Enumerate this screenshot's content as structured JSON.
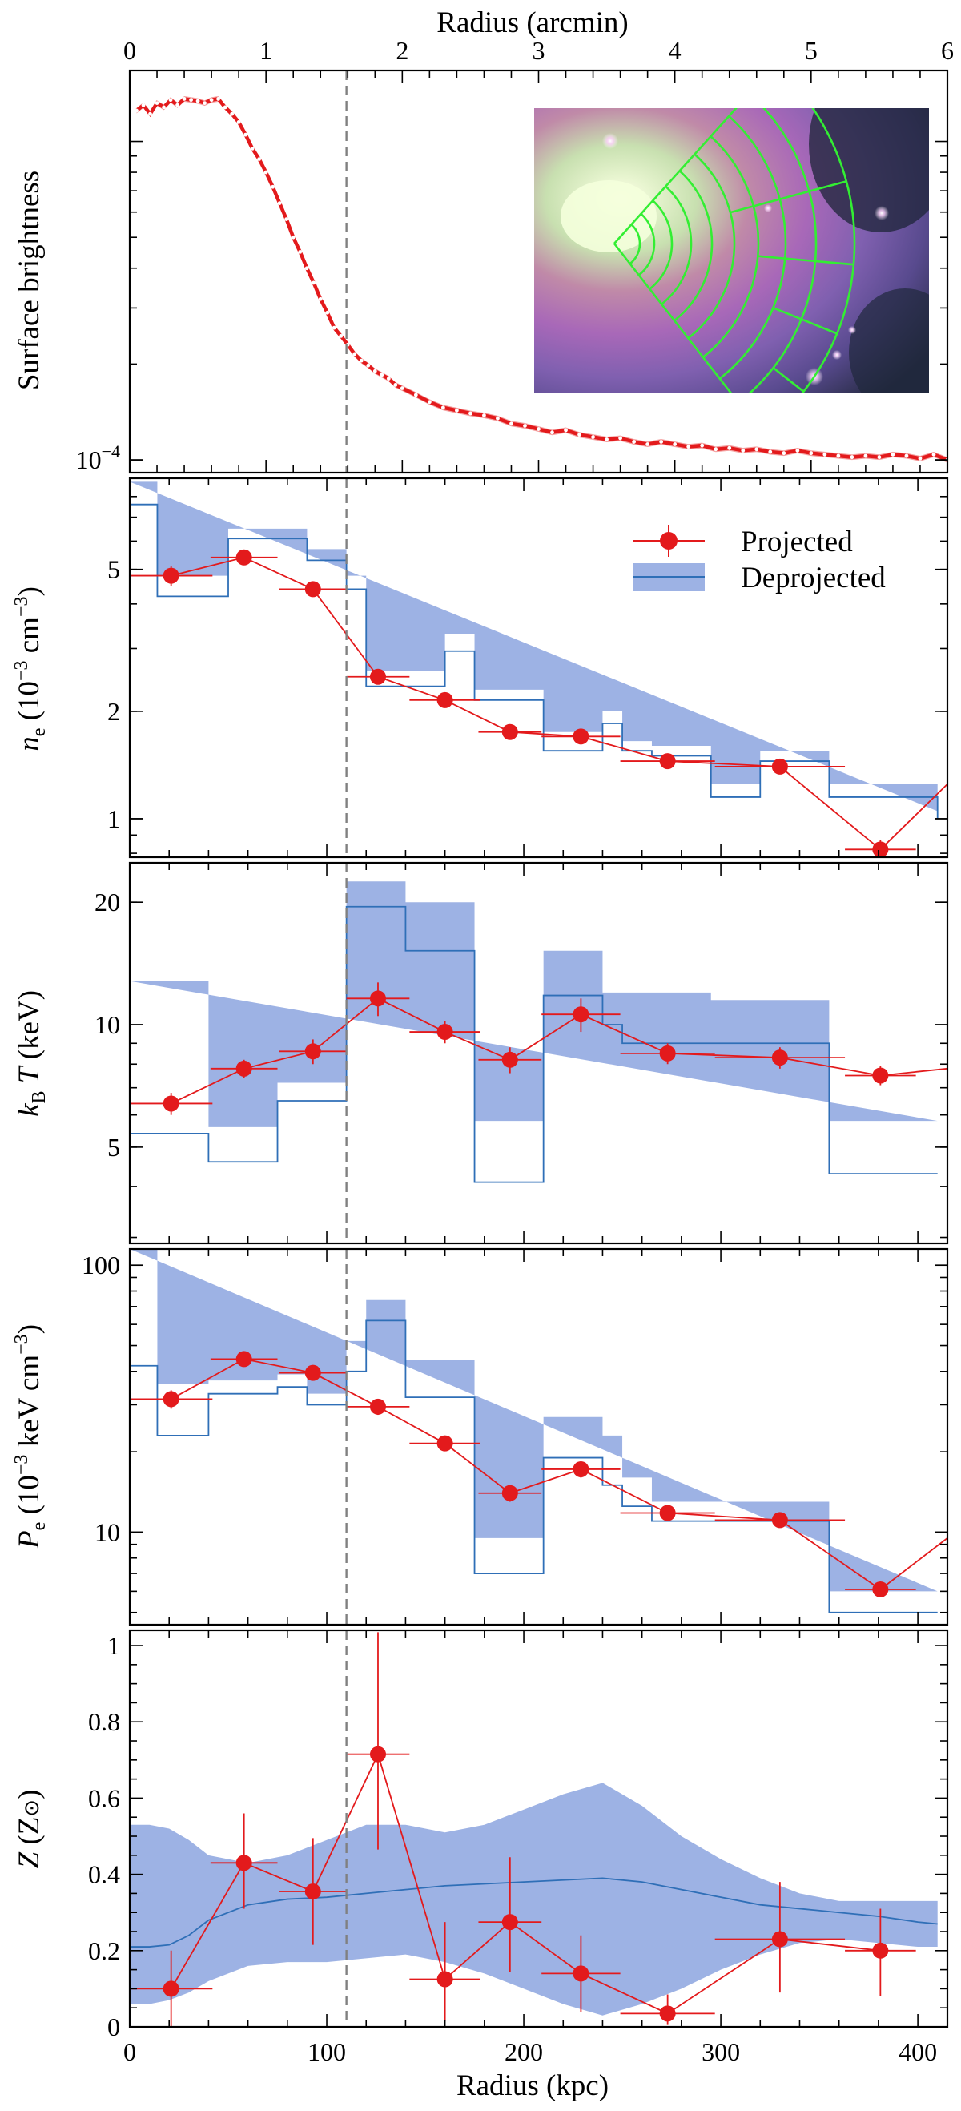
{
  "figure": {
    "top_axis_label": "Radius (arcmin)",
    "bottom_axis_label": "Radius (kpc)",
    "top_ticks": [
      "0",
      "1",
      "2",
      "3",
      "4",
      "5",
      "6"
    ],
    "bottom_ticks": [
      "0",
      "100",
      "200",
      "300",
      "400"
    ],
    "marker_line_kpc": 110
  },
  "colors": {
    "projected": "#e31a1c",
    "deproj_fill": "#9db2e4",
    "deproj_line": "#2f6fb7",
    "marker_line": "#808080"
  },
  "legend": {
    "projected": "Projected",
    "deprojected": "Deprojected"
  },
  "chart_data": [
    {
      "id": "sb",
      "type": "line",
      "ylabel": "Surface brightness",
      "yscale": "log",
      "ylim": [
        9.12e-05,
        0.00167
      ],
      "yticks": [
        {
          "value": 0.0001,
          "label": "10^-4"
        }
      ],
      "xlim": [
        0,
        6
      ],
      "x_unit": "arcmin",
      "inset_image": true,
      "series": [
        {
          "x": [
            0.05,
            0.1,
            0.15,
            0.2,
            0.25,
            0.3,
            0.35,
            0.4,
            0.45,
            0.5,
            0.55,
            0.6,
            0.65,
            0.7,
            0.75,
            0.8,
            0.85,
            0.9,
            0.95,
            1.0,
            1.05,
            1.1,
            1.15,
            1.2,
            1.25,
            1.3,
            1.35,
            1.4,
            1.45,
            1.5,
            1.55,
            1.6,
            1.65,
            1.7,
            1.75,
            1.8,
            1.85,
            1.9,
            1.95,
            2.0,
            2.1,
            2.2,
            2.3,
            2.4,
            2.5,
            2.6,
            2.7,
            2.8,
            2.9,
            3.0,
            3.1,
            3.2,
            3.3,
            3.4,
            3.5,
            3.6,
            3.7,
            3.8,
            3.9,
            4.0,
            4.1,
            4.2,
            4.3,
            4.4,
            4.5,
            4.6,
            4.7,
            4.8,
            4.9,
            5.0,
            5.1,
            5.2,
            5.3,
            5.4,
            5.5,
            5.6,
            5.7,
            5.8,
            5.9,
            6.0
          ],
          "y": [
            0.00125,
            0.0013,
            0.00122,
            0.00132,
            0.00128,
            0.00135,
            0.0013,
            0.00136,
            0.00135,
            0.00134,
            0.00132,
            0.00135,
            0.00136,
            0.00128,
            0.00122,
            0.00115,
            0.00105,
            0.00095,
            0.00088,
            0.0008,
            0.00072,
            0.00064,
            0.00057,
            0.0005,
            0.00045,
            0.0004,
            0.00036,
            0.00032,
            0.00029,
            0.00026,
            0.000245,
            0.00023,
            0.000215,
            0.000205,
            0.000198,
            0.00019,
            0.000185,
            0.00018,
            0.000172,
            0.000168,
            0.00016,
            0.000152,
            0.000146,
            0.000143,
            0.00014,
            0.000138,
            0.000135,
            0.00013,
            0.000128,
            0.000125,
            0.000122,
            0.000124,
            0.00012,
            0.000118,
            0.000116,
            0.000117,
            0.000114,
            0.000112,
            0.000114,
            0.000112,
            0.00011,
            0.000111,
            0.000108,
            0.000109,
            0.000107,
            0.000108,
            0.000106,
            0.000105,
            0.000107,
            0.000105,
            0.000104,
            0.000103,
            0.000102,
            0.000103,
            0.000102,
            0.000104,
            0.000103,
            0.000101,
            0.000104,
            0.0001
          ]
        }
      ]
    },
    {
      "id": "ne",
      "type": "step-band",
      "ylabel": "n_e (10^-3 cm^-3)",
      "yscale": "log",
      "ylim": [
        0.78,
        9.0
      ],
      "yticks": [
        {
          "value": 1,
          "label": "1"
        },
        {
          "value": 2,
          "label": "2"
        },
        {
          "value": 5,
          "label": "5"
        }
      ],
      "projected": {
        "x": [
          21,
          58,
          93,
          126,
          160,
          193,
          229,
          273,
          330,
          381
        ],
        "xerr": [
          21,
          17,
          17,
          16,
          18,
          16,
          20,
          24,
          33,
          18
        ],
        "y": [
          4.8,
          5.4,
          4.4,
          2.5,
          2.15,
          1.75,
          1.7,
          1.45,
          1.4,
          0.82
        ],
        "yerr": [
          0.3,
          0.25,
          0.2,
          0.12,
          0.1,
          0.08,
          0.08,
          0.06,
          0.06,
          0.05
        ]
      },
      "deprojected": {
        "edges": [
          0,
          40,
          75,
          110,
          140,
          175,
          210,
          250,
          295,
          355,
          410
        ],
        "steps": [
          {
            "x": [
              0,
              14,
              40,
              50,
              75,
              90,
              110,
              120,
              140,
              160,
              175,
              190,
              210,
              240,
              250,
              265,
              295,
              320,
              355,
              410
            ],
            "y": [
              7.6,
              7.6,
              4.2,
              4.2,
              6.1,
              6.1,
              5.3,
              5.3,
              4.4,
              4.4,
              2.35,
              2.35,
              2.95,
              2.95,
              2.15,
              2.15,
              2.15,
              2.15,
              1.55,
              1.55
            ]
          }
        ]
      }
    },
    {
      "id": "kt",
      "type": "step-band",
      "ylabel": "k_B T (keV)",
      "yscale": "log",
      "ylim": [
        2.9,
        25.0
      ],
      "yticks": [
        {
          "value": 5,
          "label": "5"
        },
        {
          "value": 10,
          "label": "10"
        },
        {
          "value": 20,
          "label": "20"
        }
      ],
      "projected": {
        "x": [
          21,
          58,
          93,
          126,
          160,
          193,
          229,
          273,
          330,
          381
        ],
        "xerr": [
          21,
          17,
          17,
          16,
          18,
          16,
          20,
          24,
          33,
          18
        ],
        "y": [
          6.4,
          7.8,
          8.6,
          11.6,
          9.6,
          8.2,
          10.6,
          8.5,
          8.3,
          7.5
        ],
        "yerr": [
          0.4,
          0.4,
          0.6,
          1.1,
          0.6,
          0.6,
          1.0,
          0.5,
          0.5,
          0.4
        ]
      }
    },
    {
      "id": "pe",
      "type": "step-band",
      "ylabel": "P_e (10^-3 keV cm^-3)",
      "yscale": "log",
      "ylim": [
        4.5,
        115.0
      ],
      "yticks": [
        {
          "value": 10,
          "label": "10"
        },
        {
          "value": 100,
          "label": "100"
        }
      ],
      "projected": {
        "x": [
          21,
          58,
          93,
          126,
          160,
          193,
          229,
          273,
          330,
          381
        ],
        "xerr": [
          21,
          17,
          17,
          16,
          18,
          16,
          20,
          24,
          33,
          18
        ],
        "y": [
          31.5,
          44.5,
          39.5,
          29.5,
          21.5,
          14.0,
          17.2,
          11.8,
          11.1,
          6.1
        ],
        "yerr": [
          2.5,
          2.0,
          2.0,
          2.0,
          1.2,
          1.0,
          1.2,
          0.7,
          0.6,
          0.4
        ]
      }
    },
    {
      "id": "z",
      "type": "band-line",
      "ylabel": "Z (Z_sun)",
      "yscale": "linear",
      "ylim": [
        0,
        1.04
      ],
      "yticks": [
        {
          "value": 0,
          "label": "0"
        },
        {
          "value": 0.2,
          "label": "0.2"
        },
        {
          "value": 0.4,
          "label": "0.4"
        },
        {
          "value": 0.6,
          "label": "0.6"
        },
        {
          "value": 0.8,
          "label": "0.8"
        },
        {
          "value": 1.0,
          "label": "1"
        }
      ],
      "projected": {
        "x": [
          21,
          58,
          93,
          126,
          160,
          193,
          229,
          273,
          330,
          381
        ],
        "xerr": [
          21,
          17,
          17,
          16,
          18,
          16,
          20,
          24,
          33,
          18
        ],
        "y": [
          0.1,
          0.43,
          0.355,
          0.715,
          0.125,
          0.275,
          0.14,
          0.035,
          0.23,
          0.2
        ],
        "yerr_lo": [
          0.1,
          0.12,
          0.14,
          0.25,
          0.11,
          0.13,
          0.1,
          0.03,
          0.14,
          0.12
        ],
        "yerr_hi": [
          0.1,
          0.13,
          0.14,
          0.32,
          0.15,
          0.17,
          0.1,
          0.05,
          0.15,
          0.11
        ]
      },
      "model": {
        "x": [
          0,
          10,
          20,
          30,
          40,
          60,
          80,
          100,
          120,
          140,
          160,
          180,
          200,
          220,
          240,
          260,
          280,
          300,
          320,
          340,
          360,
          380,
          400,
          410
        ],
        "y": [
          0.21,
          0.21,
          0.215,
          0.24,
          0.28,
          0.32,
          0.335,
          0.34,
          0.35,
          0.36,
          0.37,
          0.375,
          0.38,
          0.385,
          0.39,
          0.38,
          0.36,
          0.34,
          0.32,
          0.31,
          0.3,
          0.29,
          0.275,
          0.27
        ],
        "lo": [
          0.06,
          0.06,
          0.07,
          0.09,
          0.12,
          0.16,
          0.17,
          0.17,
          0.18,
          0.19,
          0.17,
          0.14,
          0.1,
          0.06,
          0.03,
          0.06,
          0.1,
          0.15,
          0.19,
          0.22,
          0.23,
          0.22,
          0.21,
          0.21
        ],
        "hi": [
          0.53,
          0.53,
          0.52,
          0.49,
          0.45,
          0.43,
          0.45,
          0.49,
          0.53,
          0.53,
          0.51,
          0.53,
          0.57,
          0.61,
          0.64,
          0.58,
          0.5,
          0.44,
          0.39,
          0.35,
          0.33,
          0.33,
          0.33,
          0.33
        ]
      }
    }
  ],
  "bands": {
    "ne": {
      "edges": [
        0,
        14,
        40,
        50,
        75,
        90,
        110,
        120,
        140,
        160,
        175,
        190,
        210,
        240,
        250,
        265,
        295,
        320,
        355,
        410
      ],
      "mid": [
        7.6,
        4.2,
        4.2,
        6.1,
        6.1,
        5.3,
        4.4,
        2.35,
        2.35,
        2.95,
        2.15,
        2.15,
        1.55,
        1.85,
        1.55,
        1.5,
        1.15,
        1.45,
        1.15,
        1.0
      ],
      "lo": [
        6.8,
        3.5,
        3.5,
        5.8,
        5.8,
        4.8,
        4.0,
        2.2,
        2.2,
        2.6,
        1.95,
        1.95,
        1.35,
        1.75,
        1.4,
        1.35,
        1.05,
        1.35,
        1.1,
        0.95
      ],
      "hi": [
        8.8,
        4.8,
        4.8,
        6.5,
        6.5,
        5.7,
        4.8,
        2.6,
        2.6,
        3.3,
        2.3,
        2.3,
        1.75,
        2.0,
        1.65,
        1.6,
        1.25,
        1.55,
        1.25,
        1.05
      ]
    },
    "kt": {
      "edges": [
        0,
        40,
        75,
        110,
        140,
        175,
        210,
        240,
        250,
        265,
        295,
        320,
        355,
        410
      ],
      "mid": [
        5.4,
        4.6,
        6.5,
        19.5,
        15.2,
        4.1,
        11.8,
        10.0,
        9.0,
        9.0,
        9.0,
        9.0,
        4.3,
        4.3
      ],
      "lo": [
        3.1,
        4.0,
        5.9,
        11.6,
        9.2,
        2.7,
        8.0,
        7.5,
        7.6,
        7.6,
        7.6,
        7.6,
        3.2,
        3.2
      ],
      "hi": [
        12.8,
        5.6,
        7.2,
        22.5,
        20.0,
        5.8,
        15.2,
        12.0,
        12.0,
        12.0,
        11.5,
        11.5,
        5.8,
        5.8
      ]
    },
    "pe": {
      "edges": [
        0,
        14,
        40,
        50,
        75,
        90,
        110,
        120,
        140,
        160,
        175,
        190,
        210,
        240,
        250,
        265,
        295,
        320,
        355,
        410
      ],
      "mid": [
        42,
        23,
        33,
        33,
        35,
        30,
        40,
        62,
        32,
        32,
        7,
        7,
        19,
        15,
        12.5,
        11,
        11,
        11,
        5,
        5
      ],
      "lo": [
        22,
        13,
        29,
        29,
        31,
        27,
        30,
        52,
        26,
        26,
        5.5,
        5.5,
        14,
        12,
        10,
        9.5,
        9.5,
        9.5,
        4,
        4
      ],
      "hi": [
        115,
        36,
        37,
        37,
        39,
        33,
        52,
        74,
        44,
        44,
        9.5,
        9.5,
        27,
        23,
        16,
        13,
        13,
        13,
        6,
        6
      ]
    }
  }
}
